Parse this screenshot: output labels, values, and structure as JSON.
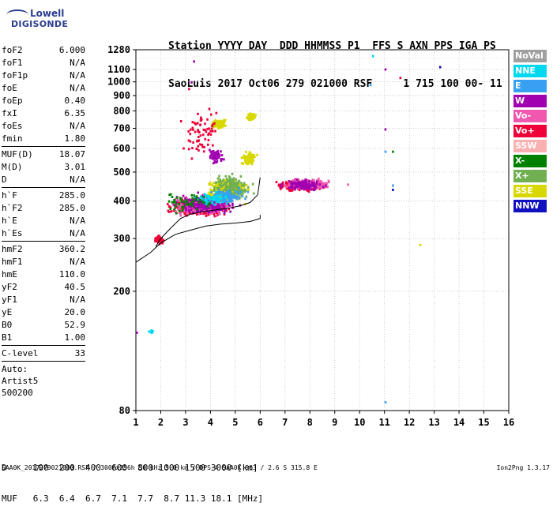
{
  "logo": {
    "line1": "Lowell",
    "line2": "DIGISONDE"
  },
  "header": {
    "line1": "Station YYYY DAY  DDD HHMMSS P1  FFS S AXN PPS IGA PS",
    "line2": "SaoLuis 2017 Oct06 279 021000 RSF     1 715 100 00- 11"
  },
  "params": {
    "group1": [
      {
        "label": "foF2",
        "value": "6.000"
      },
      {
        "label": "foF1",
        "value": "N/A"
      },
      {
        "label": "foF1p",
        "value": "N/A"
      },
      {
        "label": "foE",
        "value": "N/A"
      },
      {
        "label": "foEp",
        "value": "0.40"
      },
      {
        "label": "fxI",
        "value": "6.35"
      },
      {
        "label": "foEs",
        "value": "N/A"
      },
      {
        "label": "fmin",
        "value": "1.80"
      }
    ],
    "group2": [
      {
        "label": "MUF(D)",
        "value": "18.07"
      },
      {
        "label": "M(D)",
        "value": "3.01"
      },
      {
        "label": "D",
        "value": "N/A"
      }
    ],
    "group3": [
      {
        "label": "h`F",
        "value": "285.0"
      },
      {
        "label": "h`F2",
        "value": "285.0"
      },
      {
        "label": "h`E",
        "value": "N/A"
      },
      {
        "label": "h`Es",
        "value": "N/A"
      }
    ],
    "group4": [
      {
        "label": "hmF2",
        "value": "360.2"
      },
      {
        "label": "hmF1",
        "value": "N/A"
      },
      {
        "label": "hmE",
        "value": "110.0"
      },
      {
        "label": "yF2",
        "value": "40.5"
      },
      {
        "label": "yF1",
        "value": "N/A"
      },
      {
        "label": "yE",
        "value": "20.0"
      },
      {
        "label": "B0",
        "value": "52.9"
      },
      {
        "label": "B1",
        "value": "1.00"
      }
    ],
    "group5": [
      {
        "label": "C-level",
        "value": "33"
      }
    ],
    "auto": [
      "Auto:",
      "Artist5",
      "500200"
    ]
  },
  "legend": [
    {
      "label": "NoVal",
      "color": "#a0a0a0"
    },
    {
      "label": "NNE",
      "color": "#00d8f0"
    },
    {
      "label": "E",
      "color": "#38a0f0"
    },
    {
      "label": "W",
      "color": "#a000b0"
    },
    {
      "label": "Vo-",
      "color": "#f058b0"
    },
    {
      "label": "Vo+",
      "color": "#f00038"
    },
    {
      "label": "SSW",
      "color": "#f8b0b0"
    },
    {
      "label": "X-",
      "color": "#008000"
    },
    {
      "label": "X+",
      "color": "#70b050"
    },
    {
      "label": "SSE",
      "color": "#d8d800"
    },
    {
      "label": "NNW",
      "color": "#1010c0"
    }
  ],
  "dmuf": {
    "d_line": "D     100  200  400  600  800 1000 1500 3000 [km]",
    "muf_line": "MUF   6.3  6.4  6.7  7.1  7.7  8.7 11.3 18.1 [MHz]"
  },
  "footer": {
    "left": "SAA0K_2017279021000.RSF / 300fx256h 50 kHz 5.0 km / DPS-4 SAA0K 903 / 2.6 S 315.8 E",
    "right": "Ion2Png 1.3.17"
  },
  "chart_data": {
    "type": "scatter",
    "xlim": [
      1,
      16
    ],
    "ylim": [
      80,
      1280
    ],
    "x_scale": "linear",
    "y_scale": "log",
    "x_ticks": [
      1,
      2,
      3,
      4,
      5,
      6,
      7,
      8,
      9,
      10,
      11,
      12,
      13,
      14,
      15,
      16
    ],
    "y_ticks": [
      80,
      200,
      300,
      400,
      500,
      600,
      700,
      800,
      900,
      1000,
      1100,
      1280
    ],
    "x_tick_labels": [
      "1",
      "2",
      "3",
      "4",
      "5",
      "6",
      "7",
      "8",
      "9",
      "10",
      "11",
      "12",
      "13",
      "14",
      "15",
      "16"
    ],
    "y_tick_labels": [
      "80",
      "200",
      "300",
      "400",
      "500",
      "600",
      "700",
      "800",
      "900",
      "1000",
      "1100",
      "1280"
    ],
    "grid": true,
    "profile_curve": {
      "x": [
        1.0,
        1.6,
        2.0,
        2.6,
        3.2,
        3.8,
        4.4,
        5.0,
        5.6,
        6.0,
        6.0
      ],
      "y": [
        250,
        270,
        290,
        310,
        320,
        330,
        335,
        338,
        342,
        350,
        360
      ]
    },
    "trace_curve": {
      "x": [
        1.8,
        2.0,
        2.4,
        2.8,
        3.2,
        3.6,
        4.0,
        4.4,
        4.8,
        5.2,
        5.6,
        5.9,
        6.0
      ],
      "y": [
        282,
        300,
        325,
        350,
        362,
        368,
        372,
        376,
        380,
        386,
        396,
        420,
        480
      ]
    },
    "scatter_clusters": [
      {
        "series": "Vo+",
        "x_center": 3.5,
        "x_spread": 1.9,
        "y_center": 385,
        "y_spread": 40,
        "count": 520
      },
      {
        "series": "Vo-",
        "x_center": 3.6,
        "x_spread": 1.9,
        "y_center": 390,
        "y_spread": 45,
        "count": 380
      },
      {
        "series": "W",
        "x_center": 3.8,
        "x_spread": 1.9,
        "y_center": 395,
        "y_spread": 50,
        "count": 260
      },
      {
        "series": "SSE",
        "x_center": 4.6,
        "x_spread": 1.3,
        "y_center": 440,
        "y_spread": 60,
        "count": 420
      },
      {
        "series": "X+",
        "x_center": 4.8,
        "x_spread": 1.2,
        "y_center": 450,
        "y_spread": 70,
        "count": 160
      },
      {
        "series": "E",
        "x_center": 4.6,
        "x_spread": 1.3,
        "y_center": 420,
        "y_spread": 40,
        "count": 110
      },
      {
        "series": "NNE",
        "x_center": 4.0,
        "x_spread": 1.3,
        "y_center": 410,
        "y_spread": 40,
        "count": 70
      },
      {
        "series": "X-",
        "x_center": 3.0,
        "x_spread": 1.5,
        "y_center": 400,
        "y_spread": 50,
        "count": 50
      },
      {
        "series": "Vo+",
        "x_center": 7.6,
        "x_spread": 1.5,
        "y_center": 455,
        "y_spread": 30,
        "count": 320
      },
      {
        "series": "Vo-",
        "x_center": 7.9,
        "x_spread": 1.4,
        "y_center": 460,
        "y_spread": 30,
        "count": 230
      },
      {
        "series": "W",
        "x_center": 7.7,
        "x_spread": 1.3,
        "y_center": 458,
        "y_spread": 30,
        "count": 120
      },
      {
        "series": "SSE",
        "x_center": 4.3,
        "x_spread": 0.5,
        "y_center": 730,
        "y_spread": 40,
        "count": 140
      },
      {
        "series": "SSE",
        "x_center": 5.6,
        "x_spread": 0.3,
        "y_center": 770,
        "y_spread": 40,
        "count": 60
      },
      {
        "series": "Vo+",
        "x_center": 1.9,
        "x_spread": 0.3,
        "y_center": 300,
        "y_spread": 15,
        "count": 60
      },
      {
        "series": "SSE",
        "x_center": 5.5,
        "x_spread": 0.5,
        "y_center": 560,
        "y_spread": 50,
        "count": 90
      },
      {
        "series": "W",
        "x_center": 4.2,
        "x_spread": 0.5,
        "y_center": 570,
        "y_spread": 50,
        "count": 60
      },
      {
        "series": "Vo+",
        "x_center": 3.6,
        "x_spread": 1.3,
        "y_center": 680,
        "y_spread": 220,
        "count": 70
      },
      {
        "series": "NNE",
        "x_center": 1.6,
        "x_spread": 0.2,
        "y_center": 148,
        "y_spread": 3,
        "count": 14
      },
      {
        "series": "W",
        "x_center": 1.0,
        "x_spread": 0.05,
        "y_center": 147,
        "y_spread": 2,
        "count": 2
      }
    ],
    "isolated_points": [
      {
        "series": "NNE",
        "x": 10.5,
        "y": 1230
      },
      {
        "series": "NNW",
        "x": 13.2,
        "y": 1130
      },
      {
        "series": "W",
        "x": 11.0,
        "y": 1110
      },
      {
        "series": "Vo+",
        "x": 11.6,
        "y": 1040
      },
      {
        "series": "E",
        "x": 10.4,
        "y": 985
      },
      {
        "series": "W",
        "x": 11.0,
        "y": 700
      },
      {
        "series": "E",
        "x": 11.0,
        "y": 590
      },
      {
        "series": "X-",
        "x": 11.3,
        "y": 590
      },
      {
        "series": "NNW",
        "x": 11.3,
        "y": 440
      },
      {
        "series": "E",
        "x": 11.3,
        "y": 455
      },
      {
        "series": "SSE",
        "x": 12.4,
        "y": 288
      },
      {
        "series": "E",
        "x": 11.0,
        "y": 86
      },
      {
        "series": "Vo-",
        "x": 9.5,
        "y": 458
      },
      {
        "series": "W",
        "x": 3.3,
        "y": 1180
      },
      {
        "series": "Vo+",
        "x": 3.1,
        "y": 955
      },
      {
        "series": "W",
        "x": 3.2,
        "y": 1005
      }
    ]
  }
}
